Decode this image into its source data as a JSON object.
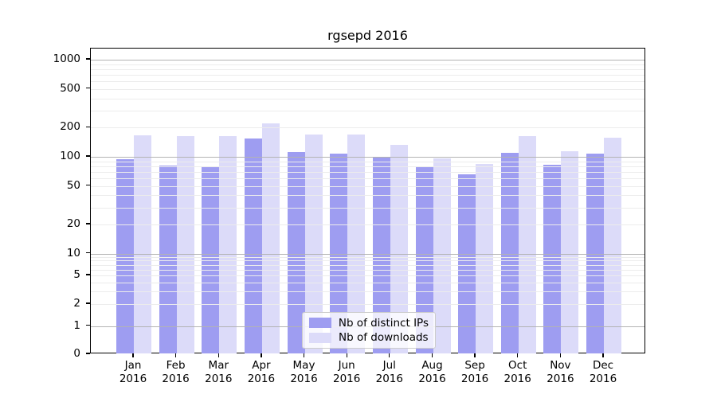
{
  "chart_data": {
    "type": "bar",
    "title": "rgsepd 2016",
    "categories": [
      "Jan",
      "Feb",
      "Mar",
      "Apr",
      "May",
      "Jun",
      "Jul",
      "Aug",
      "Sep",
      "Oct",
      "Nov",
      "Dec"
    ],
    "category_year": "2016",
    "series": [
      {
        "name": "Nb of distinct IPs",
        "color": "#9e9df1",
        "values": [
          95,
          82,
          79,
          155,
          113,
          107,
          98,
          80,
          66,
          110,
          83,
          107
        ]
      },
      {
        "name": "Nb of downloads",
        "color": "#dcdbf9",
        "values": [
          166,
          163,
          163,
          220,
          171,
          171,
          134,
          97,
          84,
          162,
          114,
          156
        ]
      }
    ],
    "yscale": "symlog",
    "yticks": [
      0,
      1,
      2,
      5,
      10,
      20,
      50,
      100,
      200,
      500,
      1000
    ],
    "minor_gridline_values": [
      2,
      3,
      4,
      5,
      6,
      7,
      8,
      9,
      20,
      30,
      40,
      50,
      60,
      70,
      80,
      90,
      200,
      300,
      400,
      500,
      600,
      700,
      800,
      900
    ],
    "major_gridline_values": [
      1,
      10,
      100,
      1000
    ],
    "ylim": [
      0,
      1300
    ],
    "xlabel": "",
    "ylabel": "",
    "grid": {
      "horizontal": true,
      "vertical": false,
      "minor": true
    },
    "legend": {
      "position": "lower center"
    },
    "colors": {
      "grid_major": "#b3b3b3",
      "grid_minor": "#ececec",
      "axis": "#000000",
      "background": "#ffffff",
      "text": "#000000"
    }
  }
}
